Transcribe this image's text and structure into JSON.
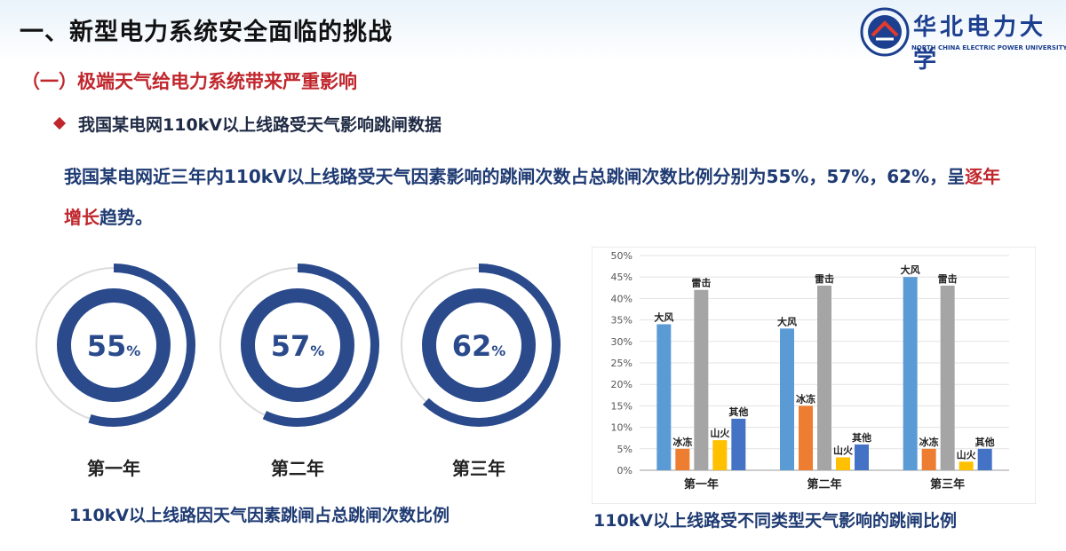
{
  "header": {
    "title": "一、新型电力系统安全面临的挑战",
    "logo_cn": "华北电力大学",
    "logo_en": "NORTH CHINA ELECTRIC POWER UNIVERSITY"
  },
  "section": {
    "title": "（一）极端天气给电力系统带来严重影响",
    "bullet": "我国某电网110kV以上线路受天气影响跳闸数据"
  },
  "description": {
    "part1": "我国某电网近三年内110kV以上线路受天气因素影响的跳闸次数占总跳闸次数比例分别为55%，57%，62%，呈",
    "highlight": "逐年增长",
    "part2": "趋势。"
  },
  "colors": {
    "donut": "#2a4a8c",
    "highlight": "#c0272d",
    "wind": "#5b9bd5",
    "ice": "#ed7d31",
    "lightning": "#a5a5a5",
    "fire": "#ffc000",
    "other": "#4472c4"
  },
  "chart_data": [
    {
      "type": "pie",
      "title": "110kV以上线路因天气因素跳闸占总跳闸次数比例",
      "items": [
        {
          "label": "第一年",
          "value": 55,
          "display": "55",
          "unit": "%"
        },
        {
          "label": "第二年",
          "value": 57,
          "display": "57",
          "unit": "%"
        },
        {
          "label": "第三年",
          "value": 62,
          "display": "62",
          "unit": "%"
        }
      ]
    },
    {
      "type": "bar",
      "title": "110kV以上线路受不同类型天气影响的跳闸比例",
      "categories": [
        "第一年",
        "第二年",
        "第三年"
      ],
      "ylim": [
        0,
        50
      ],
      "yticks": [
        "0%",
        "5%",
        "10%",
        "15%",
        "20%",
        "25%",
        "30%",
        "35%",
        "40%",
        "45%",
        "50%"
      ],
      "grid": true,
      "series": [
        {
          "name": "大风",
          "values": [
            34,
            33,
            45
          ]
        },
        {
          "name": "冰冻",
          "values": [
            5,
            15,
            5
          ]
        },
        {
          "name": "雷击",
          "values": [
            42,
            43,
            43
          ]
        },
        {
          "name": "山火",
          "values": [
            7,
            3,
            2
          ]
        },
        {
          "name": "其他",
          "values": [
            12,
            6,
            5
          ]
        }
      ]
    }
  ]
}
